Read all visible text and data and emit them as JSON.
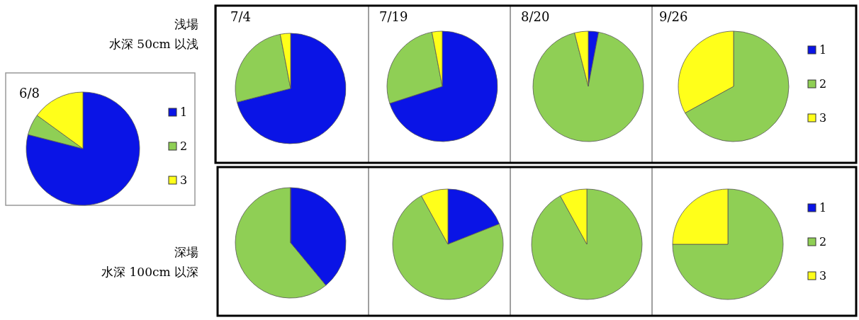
{
  "chart_data": [
    {
      "type": "pie",
      "title": "6/8",
      "categories": [
        "1",
        "2",
        "3"
      ],
      "values": [
        79,
        6,
        15
      ],
      "colors": [
        "#0a14e6",
        "#8fcf55",
        "#ffff1a"
      ],
      "legend": "right"
    },
    {
      "type": "pie",
      "title": "7/4",
      "values": [
        71,
        26,
        3
      ],
      "colors": [
        "#0a14e6",
        "#8fcf55",
        "#ffff1a"
      ],
      "annotations": [
        "浅場",
        "水深 50cm 以浅"
      ]
    },
    {
      "type": "pie",
      "title": "7/19",
      "values": [
        70,
        27,
        3
      ],
      "colors": [
        "#0a14e6",
        "#8fcf55",
        "#ffff1a"
      ]
    },
    {
      "type": "pie",
      "title": "8/20",
      "values": [
        3,
        93,
        4
      ],
      "colors": [
        "#0a14e6",
        "#8fcf55",
        "#ffff1a"
      ]
    },
    {
      "type": "pie",
      "title": "9/26",
      "categories": [
        "1",
        "2",
        "3"
      ],
      "values": [
        0,
        67,
        33
      ],
      "colors": [
        "#0a14e6",
        "#8fcf55",
        "#ffff1a"
      ],
      "legend": "right"
    },
    {
      "type": "pie",
      "values": [
        39,
        61,
        0
      ],
      "colors": [
        "#0a14e6",
        "#8fcf55",
        "#ffff1a"
      ],
      "annotations": [
        "深場",
        "水深 100cm 以深"
      ]
    },
    {
      "type": "pie",
      "values": [
        19,
        73,
        8
      ],
      "colors": [
        "#0a14e6",
        "#8fcf55",
        "#ffff1a"
      ]
    },
    {
      "type": "pie",
      "values": [
        0,
        92,
        8
      ],
      "colors": [
        "#0a14e6",
        "#8fcf55",
        "#ffff1a"
      ]
    },
    {
      "type": "pie",
      "categories": [
        "1",
        "2",
        "3"
      ],
      "values": [
        0,
        75,
        25
      ],
      "colors": [
        "#0a14e6",
        "#8fcf55",
        "#ffff1a"
      ],
      "legend": "right"
    }
  ]
}
